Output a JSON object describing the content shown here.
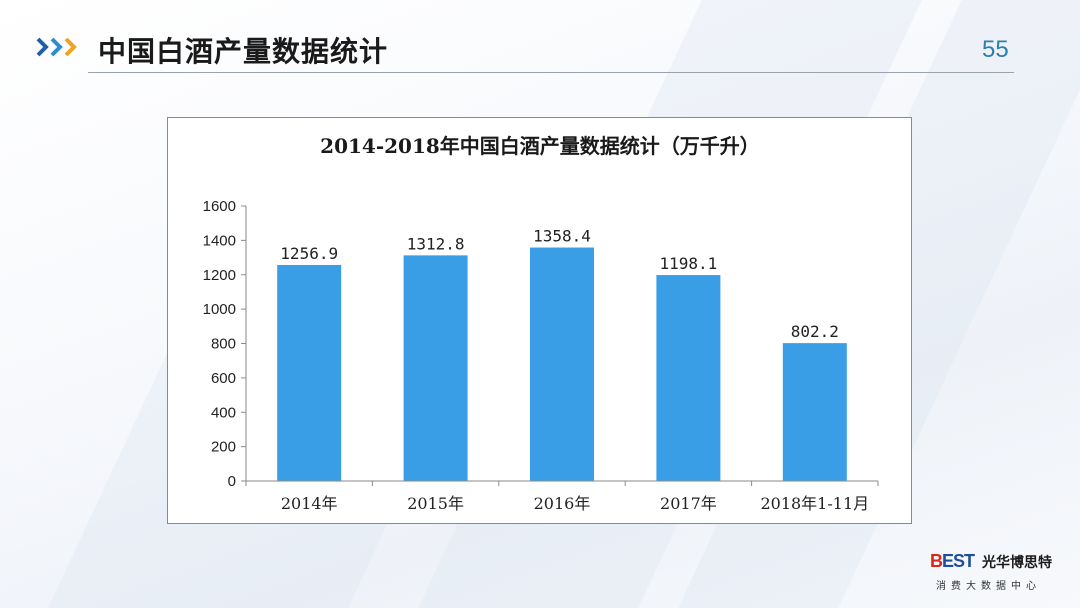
{
  "header": {
    "title": "中国白酒产量数据统计",
    "page_number": "55",
    "arrow_colors": [
      "#1f5fa8",
      "#2a8fd0",
      "#f2a31b"
    ]
  },
  "chart_data": {
    "type": "bar",
    "title": "2014-2018年中国白酒产量数据统计（万千升）",
    "categories": [
      "2014年",
      "2015年",
      "2016年",
      "2017年",
      "2018年1-11月"
    ],
    "values": [
      1256.9,
      1312.8,
      1358.4,
      1198.1,
      802.2
    ],
    "value_labels": [
      "1256.9",
      "1312.8",
      "1358.4",
      "1198.1",
      "802.2"
    ],
    "y_ticks": [
      "0",
      "200",
      "400",
      "600",
      "800",
      "1000",
      "1200",
      "1400",
      "1600"
    ],
    "ylim": [
      0,
      1600
    ],
    "grid": false,
    "legend": "none",
    "bar_color": "#3a9ee6"
  },
  "logo": {
    "mark_main": "BEST",
    "name": "光华博思特",
    "subtitle": "消费大数据中心"
  }
}
